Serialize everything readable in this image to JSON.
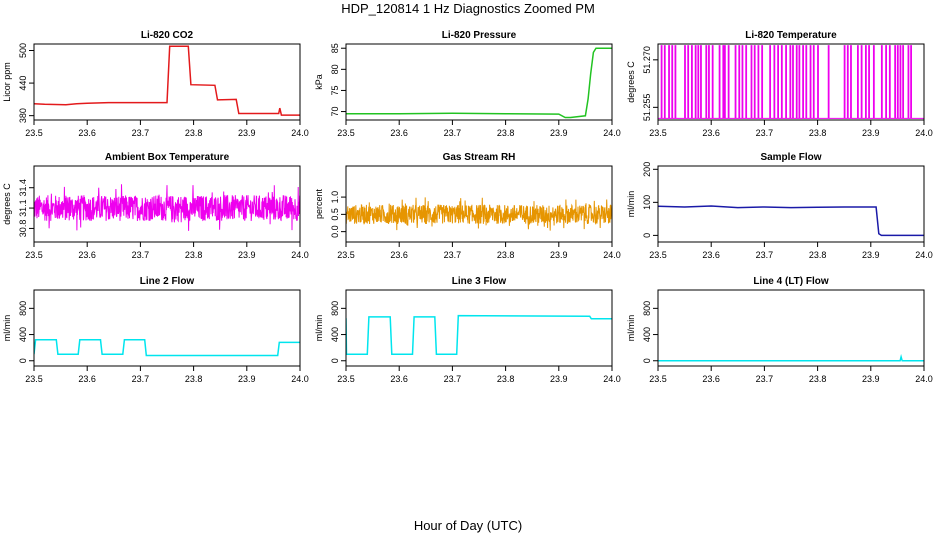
{
  "title": "HDP_120814  1 Hz Diagnostics Zoomed PM",
  "xlabel": "Hour of Day (UTC)",
  "chart_data": [
    {
      "type": "line",
      "title": "Li-820 CO2",
      "ylabel": "Licor ppm",
      "color": "#e31a1c",
      "xlim": [
        23.5,
        24.0
      ],
      "ylim": [
        372,
        512
      ],
      "xticks": [
        "23.5",
        "23.6",
        "23.7",
        "23.8",
        "23.9",
        "24.0"
      ],
      "yticks": [
        "380",
        "440",
        "500"
      ],
      "x": [
        23.5,
        23.52,
        23.56,
        23.58,
        23.6,
        23.64,
        23.68,
        23.7,
        23.75,
        23.755,
        23.79,
        23.795,
        23.84,
        23.845,
        23.88,
        23.885,
        23.96,
        23.962,
        23.965,
        24.0
      ],
      "y": [
        402,
        401,
        400,
        402,
        403,
        404,
        404,
        404,
        404,
        508,
        508,
        437,
        436,
        409,
        410,
        384,
        384,
        394,
        381,
        381
      ]
    },
    {
      "type": "line",
      "title": "Li-820 Pressure",
      "ylabel": "kPa",
      "color": "#22c322",
      "xlim": [
        23.5,
        24.0
      ],
      "ylim": [
        68,
        86
      ],
      "xticks": [
        "23.5",
        "23.6",
        "23.7",
        "23.8",
        "23.9",
        "24.0"
      ],
      "yticks": [
        "70",
        "75",
        "80",
        "85"
      ],
      "x": [
        23.5,
        23.6,
        23.7,
        23.8,
        23.9,
        23.912,
        23.922,
        23.95,
        23.955,
        23.96,
        23.965,
        23.97,
        24.0
      ],
      "y": [
        69.5,
        69.5,
        69.6,
        69.5,
        69.4,
        68.6,
        68.6,
        69.0,
        73.0,
        79.0,
        84.0,
        85.0,
        85.0
      ]
    },
    {
      "type": "line",
      "title": "Li-820 Temperature",
      "ylabel": "degrees C",
      "color": "#ee00ee",
      "xlim": [
        23.5,
        24.0
      ],
      "ylim": [
        51.251,
        51.275
      ],
      "xticks": [
        "23.5",
        "23.6",
        "23.7",
        "23.8",
        "23.9",
        "24.0"
      ],
      "yticks": [
        "51.255",
        "51.270"
      ],
      "low": 51.2515,
      "high": 51.2745,
      "pattern": "alternating between two levels",
      "spikes": [
        23.506,
        23.512,
        23.52,
        23.526,
        23.532,
        23.55,
        23.556,
        23.563,
        23.57,
        23.575,
        23.58,
        23.59,
        23.595,
        23.602,
        23.615,
        23.622,
        23.625,
        23.632,
        23.645,
        23.652,
        23.658,
        23.665,
        23.675,
        23.681,
        23.688,
        23.695,
        23.71,
        23.718,
        23.725,
        23.732,
        23.74,
        23.748,
        23.753,
        23.76,
        23.765,
        23.772,
        23.778,
        23.786,
        23.792,
        23.8,
        23.82,
        23.85,
        23.856,
        23.862,
        23.875,
        23.882,
        23.89,
        23.896,
        23.905,
        23.92,
        23.928,
        23.935,
        23.945,
        23.95,
        23.955,
        23.96,
        23.97,
        23.975
      ]
    },
    {
      "type": "line",
      "title": "Ambient Box Temperature",
      "ylabel": "degrees C",
      "color": "#ee00ee",
      "xlim": [
        23.5,
        24.0
      ],
      "ylim": [
        30.6,
        31.72
      ],
      "xticks": [
        "23.5",
        "23.6",
        "23.7",
        "23.8",
        "23.9",
        "24.0"
      ],
      "yticks": [
        "30.8",
        "31.1",
        "31.4"
      ],
      "base": 31.1,
      "noise": 0.24,
      "pattern": "high-frequency noise"
    },
    {
      "type": "line",
      "title": "Gas Stream RH",
      "ylabel": "percent",
      "color": "#e69500",
      "xlim": [
        23.5,
        24.0
      ],
      "ylim": [
        -0.3,
        1.9
      ],
      "xticks": [
        "23.5",
        "23.6",
        "23.7",
        "23.8",
        "23.9",
        "24.0"
      ],
      "yticks": [
        "0.0",
        "0.5",
        "1.0"
      ],
      "base": 0.5,
      "noise": 0.35,
      "pattern": "high-frequency noise"
    },
    {
      "type": "line",
      "title": "Sample Flow",
      "ylabel": "ml/min",
      "color": "#1a1aa8",
      "xlim": [
        23.5,
        24.0
      ],
      "ylim": [
        -20,
        210
      ],
      "xticks": [
        "23.5",
        "23.6",
        "23.7",
        "23.8",
        "23.9",
        "24.0"
      ],
      "yticks": [
        "0",
        "100",
        "200"
      ],
      "x": [
        23.5,
        23.55,
        23.6,
        23.65,
        23.7,
        23.75,
        23.8,
        23.85,
        23.9,
        23.91,
        23.915,
        23.92,
        24.0
      ],
      "y": [
        88,
        86,
        89,
        84,
        86,
        84,
        85,
        86,
        86,
        86,
        5,
        0,
        0
      ]
    },
    {
      "type": "line",
      "title": "Line 2 Flow",
      "ylabel": "ml/min",
      "color": "#00e5ee",
      "xlim": [
        23.5,
        24.0
      ],
      "ylim": [
        -80,
        1080
      ],
      "xticks": [
        "23.5",
        "23.6",
        "23.7",
        "23.8",
        "23.9",
        "24.0"
      ],
      "yticks": [
        "0",
        "400",
        "800"
      ],
      "x": [
        23.5,
        23.503,
        23.542,
        23.545,
        23.583,
        23.586,
        23.625,
        23.628,
        23.667,
        23.67,
        23.708,
        23.711,
        23.958,
        23.961,
        24.0
      ],
      "y": [
        100,
        320,
        320,
        100,
        100,
        320,
        320,
        100,
        100,
        320,
        320,
        80,
        80,
        280,
        280
      ]
    },
    {
      "type": "line",
      "title": "Line 3 Flow",
      "ylabel": "ml/min",
      "color": "#00e5ee",
      "xlim": [
        23.5,
        24.0
      ],
      "ylim": [
        -80,
        1080
      ],
      "xticks": [
        "23.5",
        "23.6",
        "23.7",
        "23.8",
        "23.9",
        "24.0"
      ],
      "yticks": [
        "0",
        "400",
        "800"
      ],
      "x": [
        23.5,
        23.501,
        23.502,
        23.54,
        23.543,
        23.583,
        23.586,
        23.625,
        23.628,
        23.667,
        23.67,
        23.708,
        23.711,
        23.958,
        23.961,
        24.0
      ],
      "y": [
        650,
        100,
        100,
        100,
        670,
        670,
        100,
        100,
        670,
        670,
        100,
        100,
        690,
        680,
        640,
        640
      ]
    },
    {
      "type": "line",
      "title": "Line 4 (LT) Flow",
      "ylabel": "ml/min",
      "color": "#00e5ee",
      "xlim": [
        23.5,
        24.0
      ],
      "ylim": [
        -80,
        1080
      ],
      "xticks": [
        "23.5",
        "23.6",
        "23.7",
        "23.8",
        "23.9",
        "24.0"
      ],
      "yticks": [
        "0",
        "400",
        "800"
      ],
      "x": [
        23.5,
        23.955,
        23.957,
        23.959,
        23.962,
        24.0
      ],
      "y": [
        0,
        0,
        60,
        0,
        0,
        0
      ]
    }
  ]
}
